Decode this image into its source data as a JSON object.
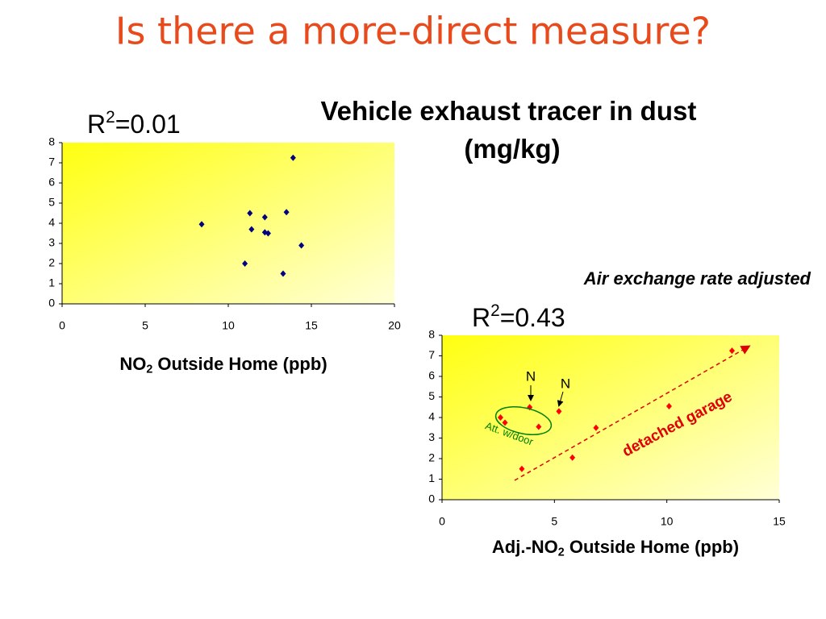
{
  "title": "Is there a more-direct measure?",
  "heading": [
    "Vehicle exhaust tracer in dust",
    "(mg/kg)"
  ],
  "chart_data": [
    {
      "type": "scatter",
      "r2": {
        "text": "R",
        "sup": "2",
        "rest": "=0.01"
      },
      "xlabel": {
        "text": "NO",
        "sub": "2",
        "rest": " Outside Home (ppb)"
      },
      "x": [
        8.4,
        11.3,
        11.4,
        12.2,
        12.2,
        12.4,
        11.0,
        13.5,
        13.9,
        14.4,
        13.3
      ],
      "y": [
        3.95,
        4.5,
        3.7,
        4.3,
        3.55,
        3.5,
        2.0,
        4.55,
        7.25,
        2.9,
        1.5
      ],
      "color": "#000080",
      "xlim": [
        0,
        20
      ],
      "xticks": [
        0,
        5,
        10,
        15,
        20
      ],
      "ylim": [
        0,
        8
      ],
      "yticks": [
        0,
        1,
        2,
        3,
        4,
        5,
        6,
        7,
        8
      ]
    },
    {
      "type": "scatter",
      "note": "Air exchange rate adjusted",
      "r2": {
        "text": "R",
        "sup": "2",
        "rest": "=0.43"
      },
      "xlabel": {
        "text": "Adj.-NO",
        "sub": "2",
        "rest": " Outside Home (ppb)"
      },
      "x": [
        2.6,
        2.8,
        3.9,
        4.3,
        3.55,
        5.2,
        5.8,
        6.85,
        10.1,
        12.9
      ],
      "y": [
        4.0,
        3.75,
        4.5,
        3.55,
        1.5,
        4.3,
        2.05,
        3.5,
        4.55,
        7.25
      ],
      "color": "#ff0000",
      "xlim": [
        0,
        15
      ],
      "xticks": [
        0,
        5,
        10,
        15
      ],
      "ylim": [
        0,
        8
      ],
      "yticks": [
        0,
        1,
        2,
        3,
        4,
        5,
        6,
        7,
        8
      ],
      "annotations": [
        "N",
        "N",
        "Att. w/door",
        "detached garage"
      ]
    }
  ]
}
